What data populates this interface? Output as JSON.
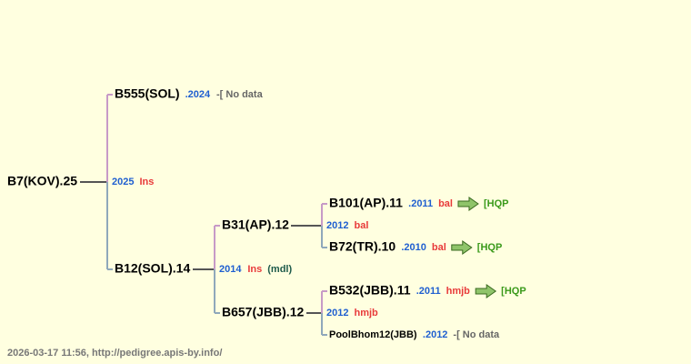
{
  "nodes": [
    {
      "name": "B7(KOV).25"
    },
    {
      "name": "B555(SOL)",
      "year": ".2024",
      "note": "-[ No data"
    },
    {
      "name": "B12(SOL).14"
    },
    {
      "name": "B31(AP).12"
    },
    {
      "name": "B101(AP).11",
      "year": ".2011",
      "breed": "bal",
      "note": "[HQP"
    },
    {
      "name": "B72(TR).10",
      "year": ".2010",
      "breed": "bal",
      "note": "[HQP"
    },
    {
      "name": "B657(JBB).12"
    },
    {
      "name": "B532(JBB).11",
      "year": ".2011",
      "breed": "hmjb",
      "note": "[HQP"
    },
    {
      "name": "PoolBhom12(JBB)",
      "year": ".2012",
      "note": "-[ No data"
    }
  ],
  "matings": [
    {
      "year": "2025",
      "breed": "Ins"
    },
    {
      "year": "2014",
      "breed": "Ins",
      "note": "(mdl)"
    },
    {
      "year": "2012",
      "breed": "bal"
    },
    {
      "year": "2012",
      "breed": "hmjb"
    }
  ],
  "footer": "2026-03-17 11:56, http://pedigree.apis-by.info/"
}
